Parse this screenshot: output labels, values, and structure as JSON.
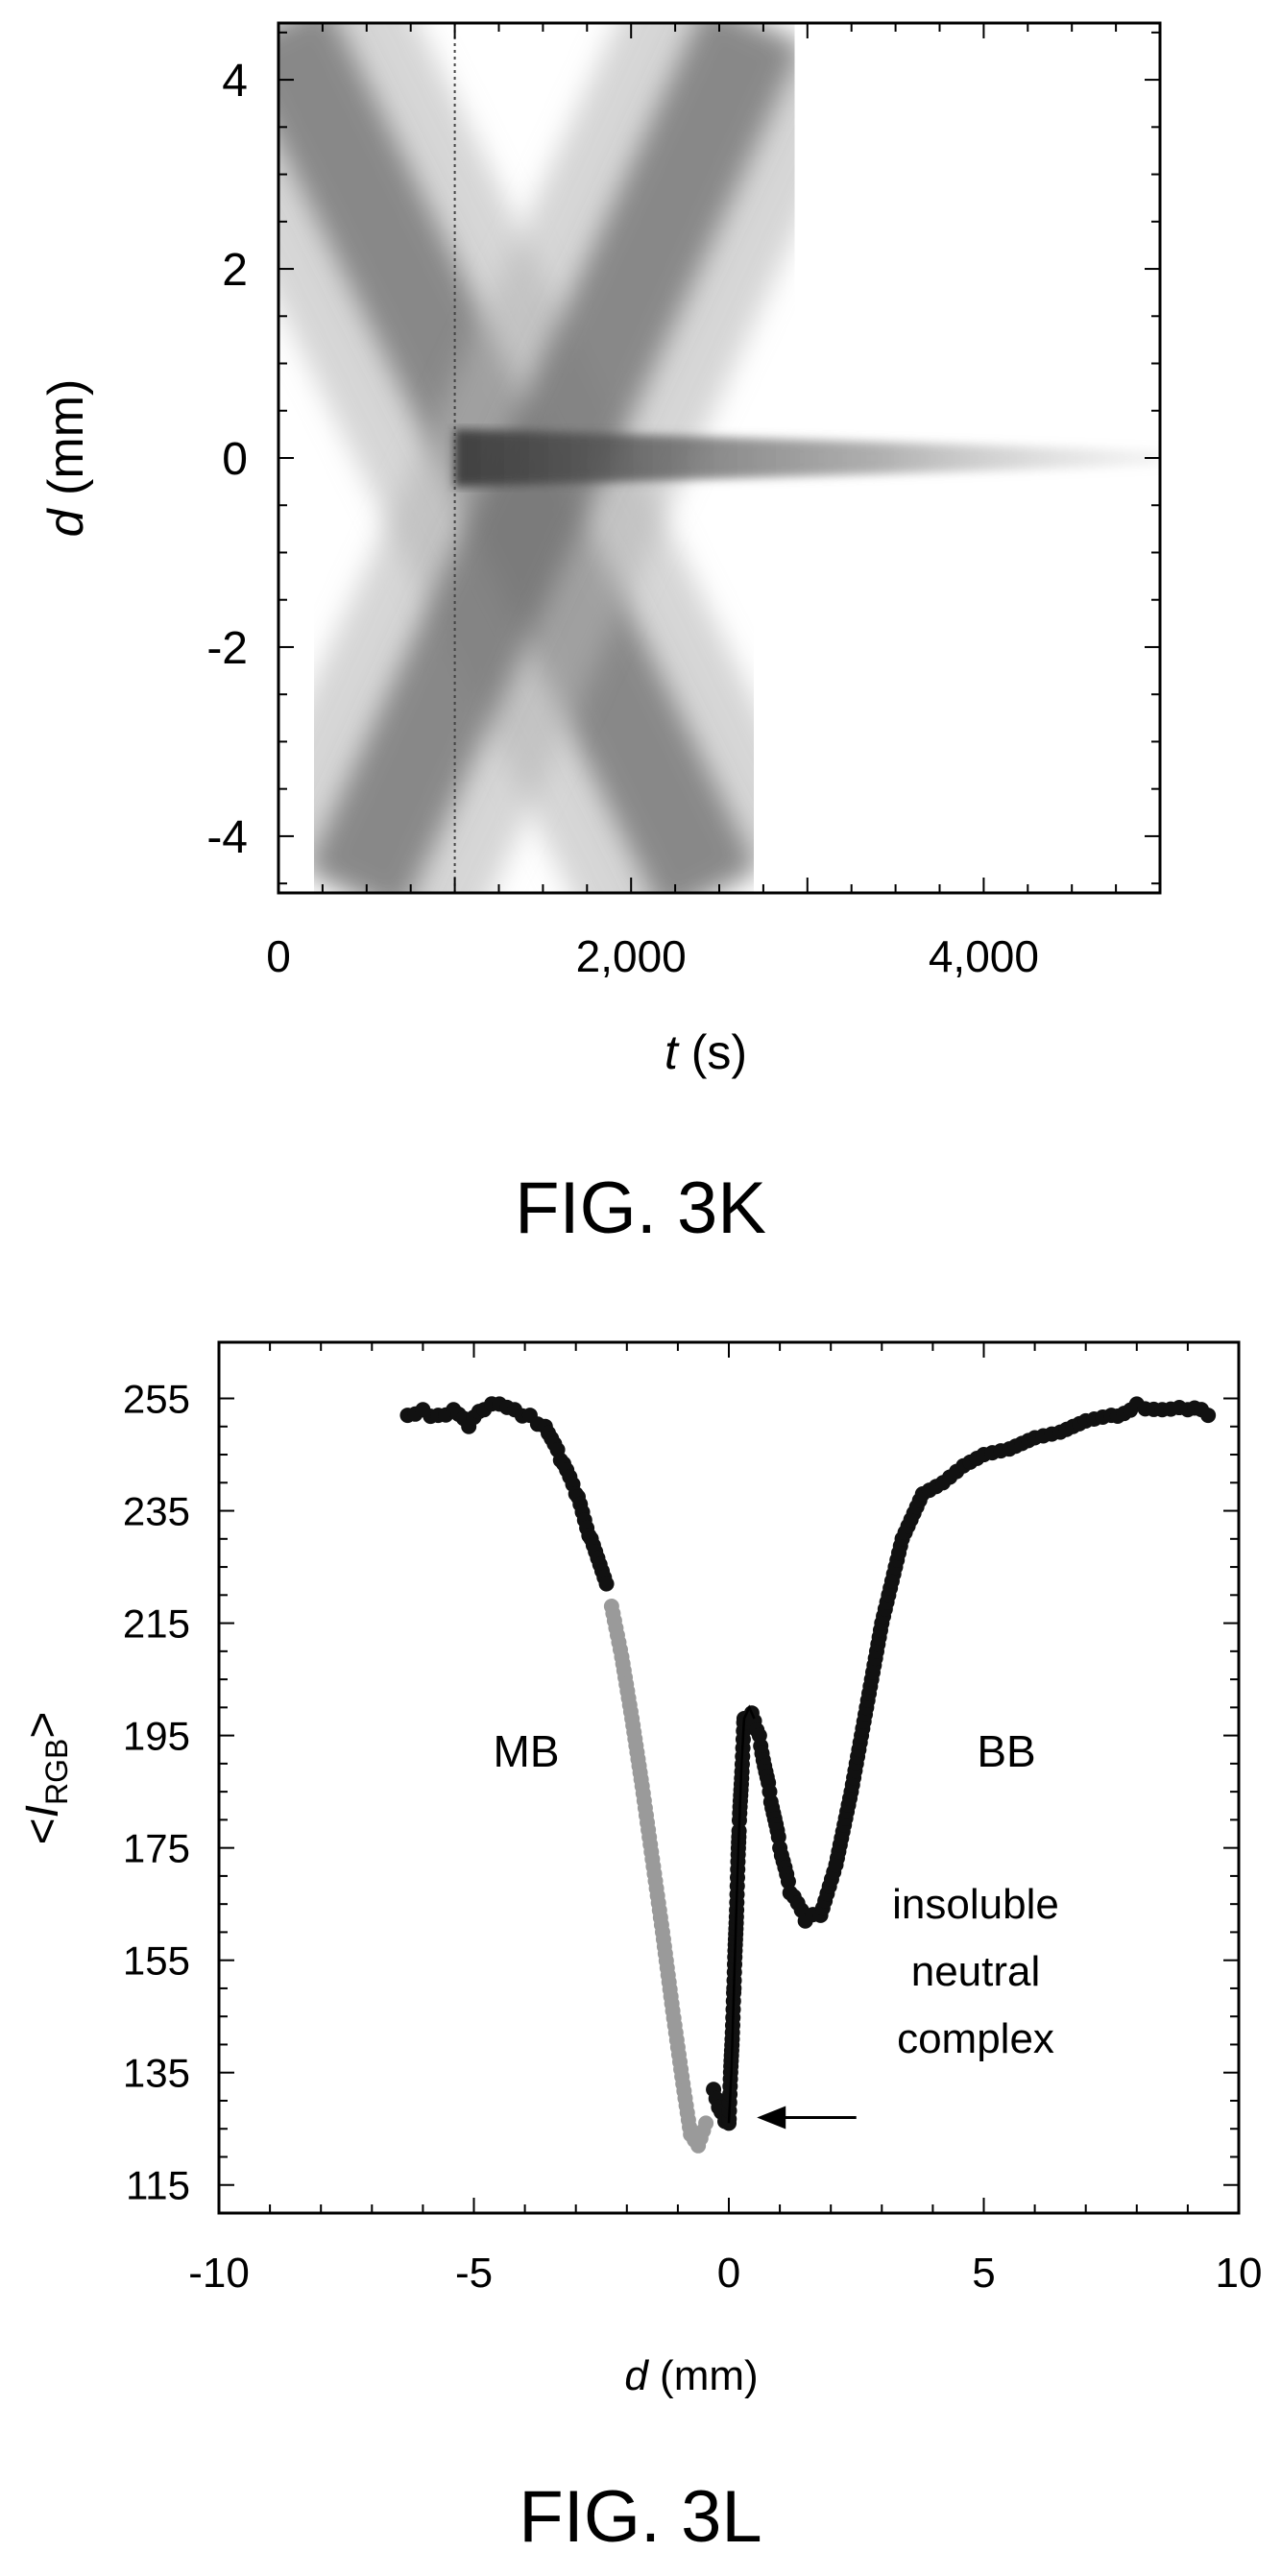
{
  "figures": {
    "k": {
      "caption": "FIG. 3K",
      "xlabel_var": "t",
      "xlabel_unit": " (s)",
      "ylabel_var": "d",
      "ylabel_unit": " (mm)"
    },
    "l": {
      "caption": "FIG. 3L",
      "xlabel_var": "d",
      "xlabel_unit": " (mm)",
      "ylabel_prefix": "<",
      "ylabel_var": "I",
      "ylabel_sub": "RGB",
      "ylabel_suffix": ">",
      "labels": {
        "mb": "MB",
        "bb": "BB",
        "complex_line1": "insoluble",
        "complex_line2": "neutral",
        "complex_line3": "complex"
      }
    }
  },
  "chart_data": [
    {
      "type": "heatmap",
      "xlim": [
        0,
        5000
      ],
      "ylim": [
        -4.6,
        4.6
      ],
      "xticks": [
        0,
        2000,
        4000
      ],
      "xtick_labels": [
        "0",
        "2,000",
        "4,000"
      ],
      "yticks": [
        4,
        2,
        0,
        -2,
        -4
      ],
      "ytick_labels": [
        "4",
        "2",
        "0",
        "-2",
        "-4"
      ],
      "grid": false,
      "dashed_vertical_line_t": 1000,
      "bands": [
        {
          "from": [
            0,
            4.6
          ],
          "to": [
            2450,
            -4.6
          ]
        },
        {
          "from": [
            430,
            -4.6
          ],
          "to": [
            2700,
            4.6
          ]
        },
        {
          "from": [
            1000,
            0
          ],
          "to": [
            5000,
            0
          ]
        }
      ]
    },
    {
      "type": "scatter",
      "xlim": [
        -10,
        10
      ],
      "ylim": [
        110,
        265
      ],
      "xticks": [
        -10,
        -5,
        0,
        5,
        10
      ],
      "xtick_labels": [
        "-10",
        "-5",
        "0",
        "5",
        "10"
      ],
      "yticks": [
        255,
        235,
        215,
        195,
        175,
        155,
        135,
        115
      ],
      "ytick_labels": [
        "255",
        "235",
        "215",
        "195",
        "175",
        "155",
        "135",
        "115"
      ],
      "grid": false,
      "series": [
        {
          "color": "#111111",
          "x": [
            -6.3,
            -6.0,
            -5.7,
            -5.4,
            -5.1,
            -4.8,
            -4.5,
            -4.2,
            -3.9,
            -3.6,
            -3.3,
            -3.0,
            -2.7,
            -2.4
          ],
          "y": [
            252,
            253,
            252,
            253,
            250,
            253,
            254,
            253,
            252,
            250,
            244,
            238,
            230,
            222
          ]
        },
        {
          "color": "#9a9a9a",
          "x": [
            -2.3,
            -2.1,
            -1.9,
            -1.7,
            -1.5,
            -1.3,
            -1.1,
            -0.9,
            -0.75,
            -0.6,
            -0.45
          ],
          "y": [
            218,
            209,
            198,
            186,
            173,
            160,
            146,
            133,
            124,
            122,
            126
          ]
        },
        {
          "color": "#111111",
          "x": [
            -0.3,
            -0.15,
            0.0,
            0.1,
            0.2,
            0.3,
            0.45,
            0.6,
            0.8,
            1.0,
            1.2,
            1.5,
            1.8,
            2.1,
            2.4,
            2.7,
            3.0,
            3.4,
            3.8,
            4.2,
            4.6,
            5.0,
            5.5,
            6.0,
            6.5,
            7.0,
            7.5,
            8.0,
            8.5,
            9.0,
            9.4
          ],
          "y": [
            132,
            128,
            126,
            150,
            178,
            198,
            199,
            195,
            185,
            175,
            167,
            162,
            163,
            172,
            185,
            200,
            215,
            230,
            238,
            240,
            243,
            245,
            246,
            248,
            249,
            251,
            252,
            254,
            253,
            253,
            252
          ]
        }
      ],
      "connecting_line": {
        "x": [
          0.0,
          0.05,
          0.1,
          0.15,
          0.2,
          0.25,
          0.3,
          0.4,
          0.5
        ],
        "y": [
          126,
          135,
          150,
          165,
          178,
          190,
          198,
          200,
          198
        ]
      },
      "annotation_arrow": {
        "from": [
          2.5,
          127
        ],
        "to": [
          0.55,
          127
        ]
      }
    }
  ]
}
